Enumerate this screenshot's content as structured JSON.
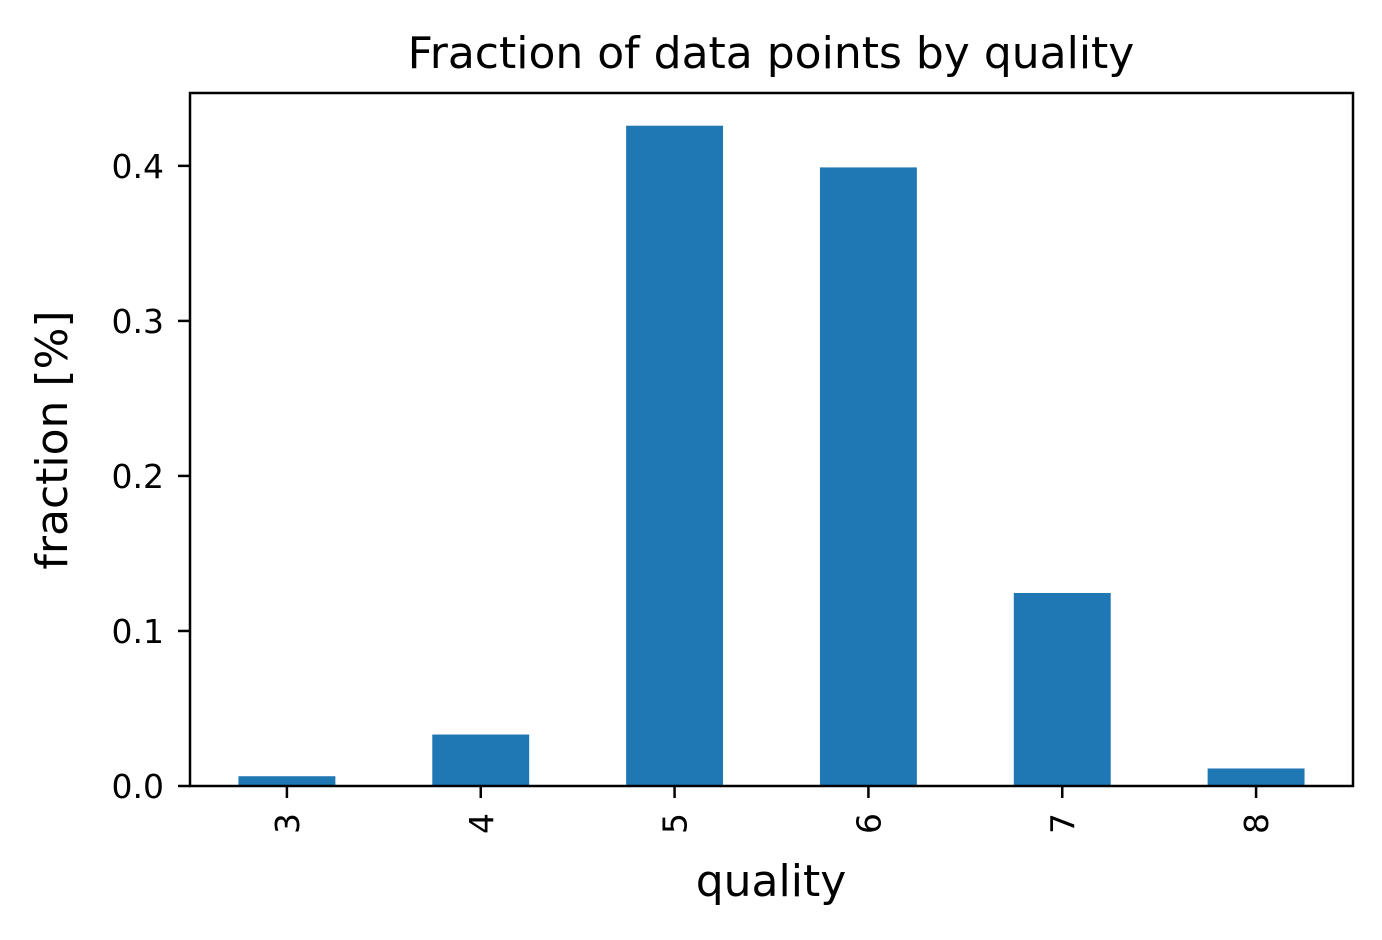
{
  "chart_data": {
    "type": "bar",
    "title": "Fraction of data points by quality",
    "xlabel": "quality",
    "ylabel": "fraction [%]",
    "categories": [
      "3",
      "4",
      "5",
      "6",
      "7",
      "8"
    ],
    "values": [
      0.0063,
      0.0332,
      0.4259,
      0.399,
      0.1245,
      0.0113
    ],
    "ylim": [
      0,
      0.447
    ],
    "yticks": [
      0.0,
      0.1,
      0.2,
      0.3,
      0.4
    ],
    "ytick_labels": [
      "0.0",
      "0.1",
      "0.2",
      "0.3",
      "0.4"
    ],
    "xtick_rotation": "vertical",
    "bar_color": "#1f77b4",
    "grid": false,
    "legend": "none"
  }
}
